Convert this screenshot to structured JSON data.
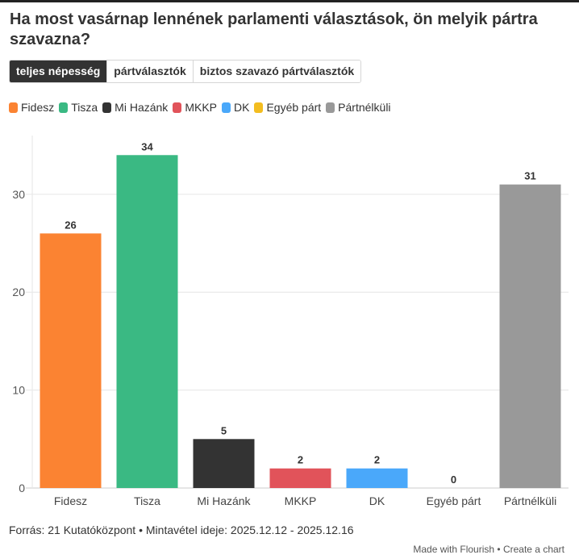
{
  "title": "Ha most vasárnap lennének parlamenti választások, ön melyik pártra szavazna?",
  "tabs": [
    {
      "label": "teljes népesség",
      "active": true
    },
    {
      "label": "pártválasztók",
      "active": false
    },
    {
      "label": "biztos szavazó pártválasztók",
      "active": false
    }
  ],
  "legend": [
    {
      "label": "Fidesz",
      "color": "#fb8332"
    },
    {
      "label": "Tisza",
      "color": "#3ab983"
    },
    {
      "label": "Mi Hazánk",
      "color": "#333333"
    },
    {
      "label": "MKKP",
      "color": "#e1535a"
    },
    {
      "label": "DK",
      "color": "#4aa8fa"
    },
    {
      "label": "Egyéb párt",
      "color": "#f3bd20"
    },
    {
      "label": "Pártnélküli",
      "color": "#999999"
    }
  ],
  "chart_data": {
    "type": "bar",
    "title": "Ha most vasárnap lennének parlamenti választások, ön melyik pártra szavazna?",
    "categories": [
      "Fidesz",
      "Tisza",
      "Mi Hazánk",
      "MKKP",
      "DK",
      "Egyéb párt",
      "Pártnélküli"
    ],
    "values": [
      26,
      34,
      5,
      2,
      2,
      0,
      31
    ],
    "colors": [
      "#fb8332",
      "#3ab983",
      "#333333",
      "#e1535a",
      "#4aa8fa",
      "#f3bd20",
      "#999999"
    ],
    "xlabel": "",
    "ylabel": "",
    "ylim": [
      0,
      36
    ],
    "yticks": [
      0,
      10,
      20,
      30
    ],
    "grid": true,
    "legend_position": "top-left",
    "data_labels": true
  },
  "footer": {
    "source": "Forrás: 21 Kutatóközpont • Mintavétel ideje: 2025.12.12 - 2025.12.16",
    "made_with": "Made with Flourish",
    "separator": " • ",
    "create_chart": "Create a chart"
  }
}
